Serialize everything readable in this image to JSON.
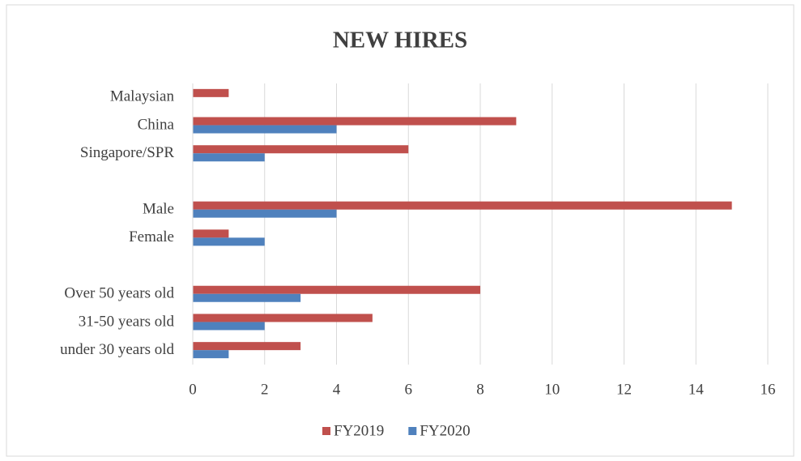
{
  "chart_data": {
    "type": "bar",
    "orientation": "horizontal",
    "title": "NEW HIRES",
    "categories": [
      "Malaysian",
      "China",
      "Singapore/SPR",
      null,
      "Male",
      "Female",
      null,
      "Over 50 years old",
      "31-50 years old",
      "under 30 years old"
    ],
    "series": [
      {
        "name": "FY2019",
        "color": "#c0504d",
        "values": [
          1,
          9,
          6,
          null,
          15,
          1,
          null,
          8,
          5,
          3
        ]
      },
      {
        "name": "FY2020",
        "color": "#4f81bd",
        "values": [
          0,
          4,
          2,
          null,
          4,
          2,
          null,
          3,
          2,
          1
        ]
      }
    ],
    "xlim": [
      0,
      16
    ],
    "xticks": [
      0,
      2,
      4,
      6,
      8,
      10,
      12,
      14,
      16
    ],
    "grid": true,
    "legend": "bottom"
  }
}
